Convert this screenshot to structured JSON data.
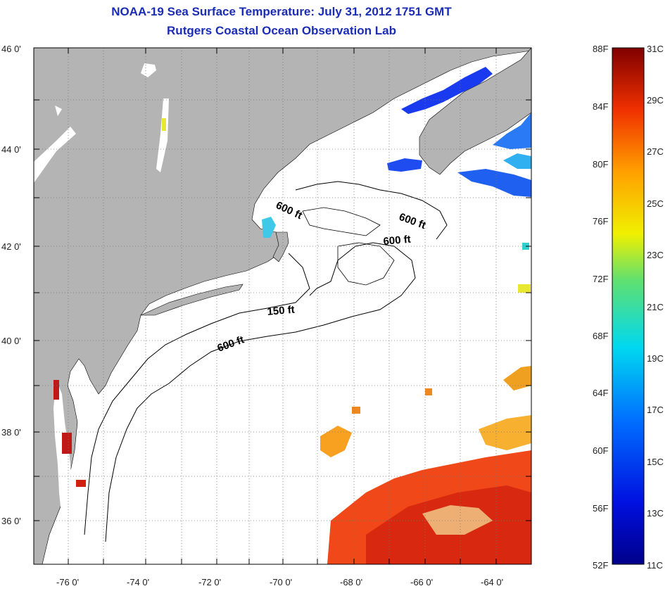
{
  "title": {
    "line1": "NOAA-19 Sea Surface Temperature:  July 31, 2012 1751 GMT",
    "line2": "Rutgers Coastal Ocean Observation Lab"
  },
  "axes": {
    "lat_labels": [
      "46 0'",
      "44 0'",
      "42 0'",
      "40 0'",
      "38 0'",
      "36 0'"
    ],
    "lon_labels": [
      "-76 0'",
      "-74 0'",
      "-72 0'",
      "-70 0'",
      "-68 0'",
      "-66 0'",
      "-64 0'"
    ]
  },
  "contours": [
    {
      "label": "600 ft"
    },
    {
      "label": "600 ft"
    },
    {
      "label": "600 ft"
    },
    {
      "label": "150 ft"
    },
    {
      "label": "600 ft"
    }
  ],
  "colorbar": {
    "fahrenheit_labels": [
      "88F",
      "84F",
      "80F",
      "76F",
      "72F",
      "68F",
      "64F",
      "60F",
      "56F",
      "52F"
    ],
    "celsius_labels": [
      "31C",
      "29C",
      "27C",
      "25C",
      "23C",
      "21C",
      "19C",
      "17C",
      "15C",
      "13C",
      "11C"
    ]
  },
  "colors": {
    "land": "#b4b4b4",
    "ocean_no_data": "#ffffff",
    "title": "#1a2db4",
    "cold": "#0a1ed2",
    "warm": "#e83010"
  }
}
